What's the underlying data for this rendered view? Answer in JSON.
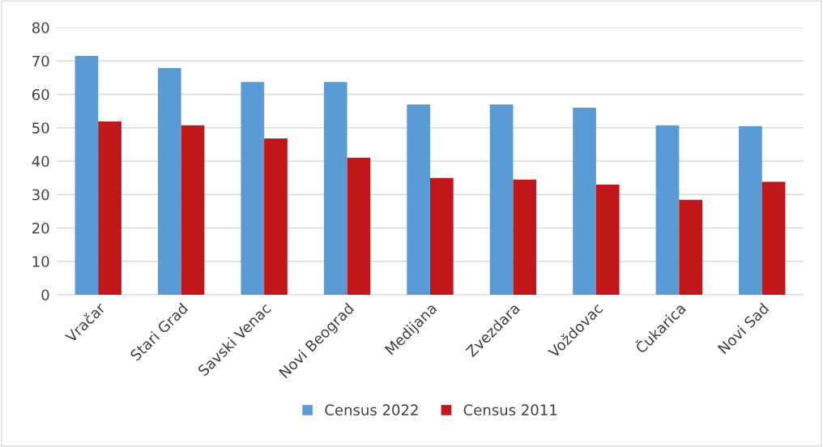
{
  "chart_data": {
    "type": "bar",
    "categories": [
      "Vračar",
      "Stari Grad",
      "Savski Venac",
      "Novi Beograd",
      "Medijana",
      "Zvezdara",
      "Voždovac",
      "Čukarica",
      "Novi Sad"
    ],
    "series": [
      {
        "name": "Census 2022",
        "color": "#5b9bd5",
        "values": [
          71.5,
          67.9,
          63.7,
          63.7,
          57,
          57,
          56,
          50.7,
          50.5
        ]
      },
      {
        "name": "Census 2011",
        "color": "#c0171b",
        "values": [
          51.9,
          50.7,
          46.8,
          41,
          35,
          34.5,
          33,
          28.4,
          33.8
        ]
      }
    ],
    "ylim": [
      0,
      80
    ],
    "yticks": [
      0,
      10,
      20,
      30,
      40,
      50,
      60,
      70,
      80
    ],
    "grid": "y",
    "legend": "bottom"
  }
}
